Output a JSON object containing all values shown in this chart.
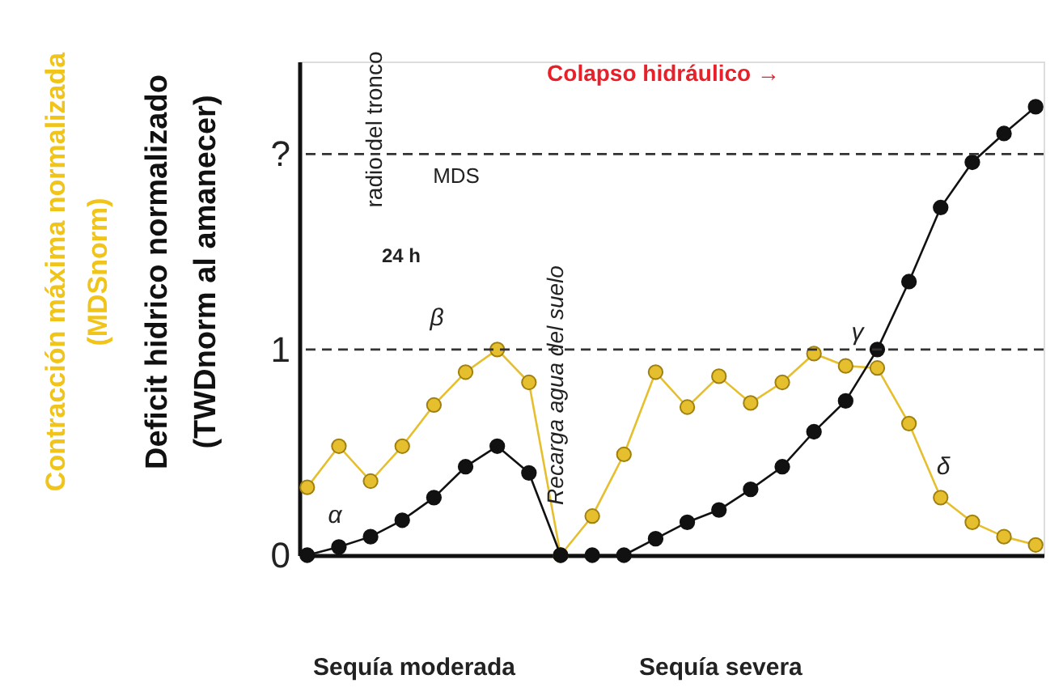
{
  "chart_data": {
    "type": "line",
    "ylabel": "Deficit hidrico normalizado\n(TWDnorm al amanecer)",
    "categories": [
      null,
      null,
      null,
      null,
      null,
      null,
      null,
      null,
      null,
      null,
      null,
      null,
      null,
      null,
      null,
      null,
      null,
      null,
      null,
      null,
      null,
      null,
      null,
      null
    ],
    "series": [
      {
        "color": "#e6bf2e",
        "values": [
          0.33,
          0.53,
          0.36,
          0.53,
          0.73,
          0.89,
          1.0,
          0.84,
          0,
          0.19,
          0.49,
          0.89,
          0.72,
          0.87,
          0.74,
          0.84,
          0.98,
          0.92,
          0.91,
          0.64,
          0.28,
          0.16,
          0.09,
          0.05
        ]
      },
      {
        "color": "#111111",
        "values": [
          0,
          0.04,
          0.09,
          0.17,
          0.28,
          0.43,
          0.53,
          0.4,
          0,
          0,
          0,
          0.08,
          0.16,
          0.22,
          0.32,
          0.43,
          0.6,
          0.75,
          1.0,
          1.33,
          1.69,
          1.91,
          2.05,
          2.18
        ]
      }
    ],
    "ylim": [
      0,
      2.4
    ],
    "yticks": [
      0,
      1,
      {
        "value": 1.95,
        "label": "?"
      }
    ],
    "ref_lines": [
      {
        "axis": "y",
        "value": 1,
        "line_style": "dashed",
        "color": "#333333"
      },
      {
        "axis": "y",
        "value": 1.95,
        "line_style": "dashed",
        "color": "#333333"
      }
    ],
    "marker": "circle",
    "line_style": "solid",
    "grid": false,
    "tick_labels": "y",
    "annotations": [
      "Contracción máxima normalizada\n(MDSnorm)",
      "Colapso hidráulico →",
      "Recarga agua del suelo",
      "α",
      "β",
      "γ",
      "δ",
      "radio del tronco",
      "MDS",
      "24 h",
      "Sequía moderada",
      "Sequía severa"
    ]
  }
}
